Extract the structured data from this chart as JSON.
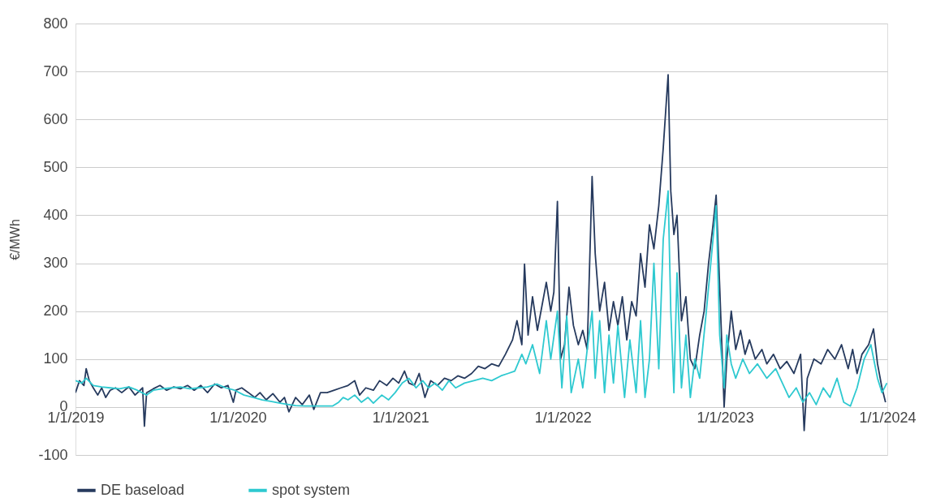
{
  "chart_data": {
    "type": "line",
    "ylabel": "€/MWh",
    "ylim": [
      -100,
      800
    ],
    "yticks": [
      -100,
      0,
      100,
      200,
      300,
      400,
      500,
      600,
      700,
      800
    ],
    "xlim": [
      "2019-01-01",
      "2024-01-01"
    ],
    "xticks": [
      {
        "value": "2019-01-01",
        "label": "1/1/2019"
      },
      {
        "value": "2020-01-01",
        "label": "1/1/2020"
      },
      {
        "value": "2021-01-01",
        "label": "1/1/2021"
      },
      {
        "value": "2022-01-01",
        "label": "1/1/2022"
      },
      {
        "value": "2023-01-01",
        "label": "1/1/2023"
      },
      {
        "value": "2024-01-01",
        "label": "1/1/2024"
      }
    ],
    "grid": "y",
    "legend": "bottom",
    "marker": "none",
    "line_style": "solid",
    "series": [
      {
        "name": "DE baseload",
        "color": "#263a5e",
        "x": [
          "2019-01-01",
          "2019-01-10",
          "2019-01-20",
          "2019-01-25",
          "2019-02-01",
          "2019-02-10",
          "2019-02-20",
          "2019-03-01",
          "2019-03-10",
          "2019-03-20",
          "2019-04-01",
          "2019-04-15",
          "2019-05-01",
          "2019-05-15",
          "2019-06-01",
          "2019-06-05",
          "2019-06-10",
          "2019-06-25",
          "2019-07-10",
          "2019-07-25",
          "2019-08-10",
          "2019-08-25",
          "2019-09-10",
          "2019-09-25",
          "2019-10-10",
          "2019-10-25",
          "2019-11-10",
          "2019-11-25",
          "2019-12-10",
          "2019-12-22",
          "2019-12-28",
          "2020-01-10",
          "2020-01-25",
          "2020-02-08",
          "2020-02-20",
          "2020-03-05",
          "2020-03-20",
          "2020-04-05",
          "2020-04-15",
          "2020-04-25",
          "2020-05-10",
          "2020-05-25",
          "2020-06-10",
          "2020-06-20",
          "2020-07-05",
          "2020-07-20",
          "2020-08-05",
          "2020-08-20",
          "2020-09-05",
          "2020-09-20",
          "2020-10-01",
          "2020-10-15",
          "2020-11-01",
          "2020-11-15",
          "2020-12-01",
          "2020-12-15",
          "2020-12-28",
          "2021-01-10",
          "2021-01-20",
          "2021-02-01",
          "2021-02-12",
          "2021-02-25",
          "2021-03-10",
          "2021-03-25",
          "2021-04-10",
          "2021-04-25",
          "2021-05-10",
          "2021-05-25",
          "2021-06-10",
          "2021-06-25",
          "2021-07-10",
          "2021-07-25",
          "2021-08-10",
          "2021-08-25",
          "2021-09-10",
          "2021-09-20",
          "2021-10-01",
          "2021-10-07",
          "2021-10-15",
          "2021-10-25",
          "2021-11-05",
          "2021-11-15",
          "2021-11-25",
          "2021-12-05",
          "2021-12-12",
          "2021-12-20",
          "2021-12-27",
          "2022-01-05",
          "2022-01-15",
          "2022-01-25",
          "2022-02-05",
          "2022-02-15",
          "2022-02-25",
          "2022-03-08",
          "2022-03-15",
          "2022-03-25",
          "2022-04-05",
          "2022-04-15",
          "2022-04-25",
          "2022-05-05",
          "2022-05-15",
          "2022-05-25",
          "2022-06-05",
          "2022-06-15",
          "2022-06-25",
          "2022-07-05",
          "2022-07-15",
          "2022-07-25",
          "2022-08-05",
          "2022-08-15",
          "2022-08-26",
          "2022-09-01",
          "2022-09-08",
          "2022-09-15",
          "2022-09-25",
          "2022-10-05",
          "2022-10-15",
          "2022-10-25",
          "2022-11-05",
          "2022-11-15",
          "2022-11-25",
          "2022-12-05",
          "2022-12-12",
          "2022-12-20",
          "2022-12-30",
          "2023-01-05",
          "2023-01-15",
          "2023-01-25",
          "2023-02-05",
          "2023-02-15",
          "2023-02-25",
          "2023-03-10",
          "2023-03-25",
          "2023-04-05",
          "2023-04-20",
          "2023-05-05",
          "2023-05-20",
          "2023-06-05",
          "2023-06-20",
          "2023-06-28",
          "2023-07-05",
          "2023-07-20",
          "2023-08-05",
          "2023-08-20",
          "2023-09-05",
          "2023-09-20",
          "2023-10-05",
          "2023-10-15",
          "2023-10-25",
          "2023-11-05",
          "2023-11-20",
          "2023-12-01",
          "2023-12-10",
          "2023-12-20",
          "2023-12-28"
        ],
        "values": [
          30,
          55,
          45,
          80,
          55,
          40,
          25,
          40,
          20,
          35,
          40,
          30,
          42,
          25,
          40,
          -40,
          30,
          38,
          45,
          35,
          42,
          38,
          45,
          35,
          45,
          30,
          48,
          40,
          45,
          10,
          35,
          40,
          30,
          20,
          30,
          15,
          28,
          10,
          20,
          -10,
          20,
          5,
          25,
          -5,
          30,
          30,
          35,
          40,
          45,
          55,
          25,
          40,
          35,
          55,
          45,
          60,
          50,
          75,
          50,
          45,
          70,
          20,
          55,
          45,
          60,
          55,
          65,
          60,
          70,
          85,
          80,
          90,
          85,
          110,
          140,
          180,
          130,
          298,
          150,
          230,
          160,
          210,
          260,
          200,
          240,
          429,
          100,
          130,
          250,
          170,
          130,
          160,
          120,
          481,
          320,
          200,
          260,
          160,
          220,
          170,
          230,
          140,
          220,
          190,
          320,
          250,
          380,
          330,
          420,
          540,
          693,
          450,
          360,
          400,
          180,
          230,
          100,
          80,
          150,
          200,
          300,
          380,
          442,
          250,
          0,
          100,
          200,
          120,
          160,
          110,
          140,
          100,
          120,
          90,
          110,
          80,
          95,
          70,
          110,
          -49,
          60,
          100,
          90,
          120,
          100,
          130,
          80,
          120,
          70,
          110,
          130,
          163,
          90,
          40,
          10
        ]
      },
      {
        "name": "spot system",
        "color": "#2ec9d0",
        "x": [
          "2019-01-01",
          "2019-01-15",
          "2019-01-25",
          "2019-02-10",
          "2019-03-01",
          "2019-03-20",
          "2019-04-10",
          "2019-05-01",
          "2019-05-20",
          "2019-06-10",
          "2019-06-25",
          "2019-07-15",
          "2019-08-05",
          "2019-08-25",
          "2019-09-15",
          "2019-10-05",
          "2019-10-25",
          "2019-11-15",
          "2019-12-05",
          "2019-12-25",
          "2020-01-15",
          "2020-02-05",
          "2020-02-25",
          "2020-03-15",
          "2020-04-05",
          "2020-04-25",
          "2020-05-10",
          "2020-06-01",
          "2020-07-01",
          "2020-08-01",
          "2020-08-15",
          "2020-08-25",
          "2020-09-05",
          "2020-09-20",
          "2020-10-05",
          "2020-10-20",
          "2020-11-01",
          "2020-11-20",
          "2020-12-05",
          "2020-12-20",
          "2021-01-05",
          "2021-01-20",
          "2021-02-05",
          "2021-02-20",
          "2021-03-05",
          "2021-03-20",
          "2021-04-05",
          "2021-04-20",
          "2021-05-05",
          "2021-05-25",
          "2021-06-15",
          "2021-07-05",
          "2021-07-25",
          "2021-08-15",
          "2021-08-31",
          "2021-09-15",
          "2021-10-01",
          "2021-10-10",
          "2021-10-25",
          "2021-11-10",
          "2021-11-25",
          "2021-12-05",
          "2021-12-20",
          "2021-12-30",
          "2022-01-10",
          "2022-01-20",
          "2022-02-05",
          "2022-02-15",
          "2022-02-25",
          "2022-03-08",
          "2022-03-15",
          "2022-03-25",
          "2022-04-05",
          "2022-04-15",
          "2022-04-25",
          "2022-05-05",
          "2022-05-20",
          "2022-06-01",
          "2022-06-15",
          "2022-06-25",
          "2022-07-05",
          "2022-07-15",
          "2022-07-25",
          "2022-08-05",
          "2022-08-15",
          "2022-08-26",
          "2022-09-01",
          "2022-09-08",
          "2022-09-15",
          "2022-09-25",
          "2022-10-05",
          "2022-10-15",
          "2022-10-25",
          "2022-11-05",
          "2022-11-20",
          "2022-12-05",
          "2022-12-12",
          "2022-12-20",
          "2022-12-30",
          "2023-01-05",
          "2023-01-15",
          "2023-01-25",
          "2023-02-10",
          "2023-02-25",
          "2023-03-15",
          "2023-04-05",
          "2023-04-25",
          "2023-05-10",
          "2023-05-25",
          "2023-06-10",
          "2023-06-25",
          "2023-07-10",
          "2023-07-25",
          "2023-08-10",
          "2023-08-25",
          "2023-09-10",
          "2023-09-25",
          "2023-10-10",
          "2023-10-25",
          "2023-11-10",
          "2023-11-25",
          "2023-12-10",
          "2023-12-20",
          "2023-12-31"
        ],
        "values": [
          55,
          50,
          60,
          45,
          42,
          40,
          38,
          42,
          35,
          25,
          35,
          38,
          40,
          42,
          38,
          40,
          42,
          48,
          40,
          35,
          25,
          20,
          15,
          12,
          8,
          5,
          3,
          2,
          2,
          2,
          10,
          20,
          15,
          25,
          10,
          20,
          8,
          25,
          15,
          30,
          50,
          60,
          40,
          55,
          40,
          50,
          35,
          55,
          40,
          50,
          55,
          60,
          55,
          65,
          70,
          75,
          110,
          90,
          130,
          70,
          180,
          100,
          200,
          40,
          190,
          30,
          100,
          40,
          120,
          200,
          60,
          180,
          30,
          150,
          50,
          170,
          20,
          140,
          30,
          180,
          20,
          100,
          300,
          80,
          350,
          451,
          200,
          30,
          280,
          40,
          150,
          20,
          100,
          60,
          200,
          350,
          420,
          150,
          40,
          150,
          90,
          60,
          100,
          70,
          90,
          60,
          80,
          50,
          20,
          40,
          10,
          30,
          5,
          40,
          20,
          60,
          10,
          2,
          40,
          100,
          130,
          60,
          30,
          50
        ]
      }
    ]
  }
}
